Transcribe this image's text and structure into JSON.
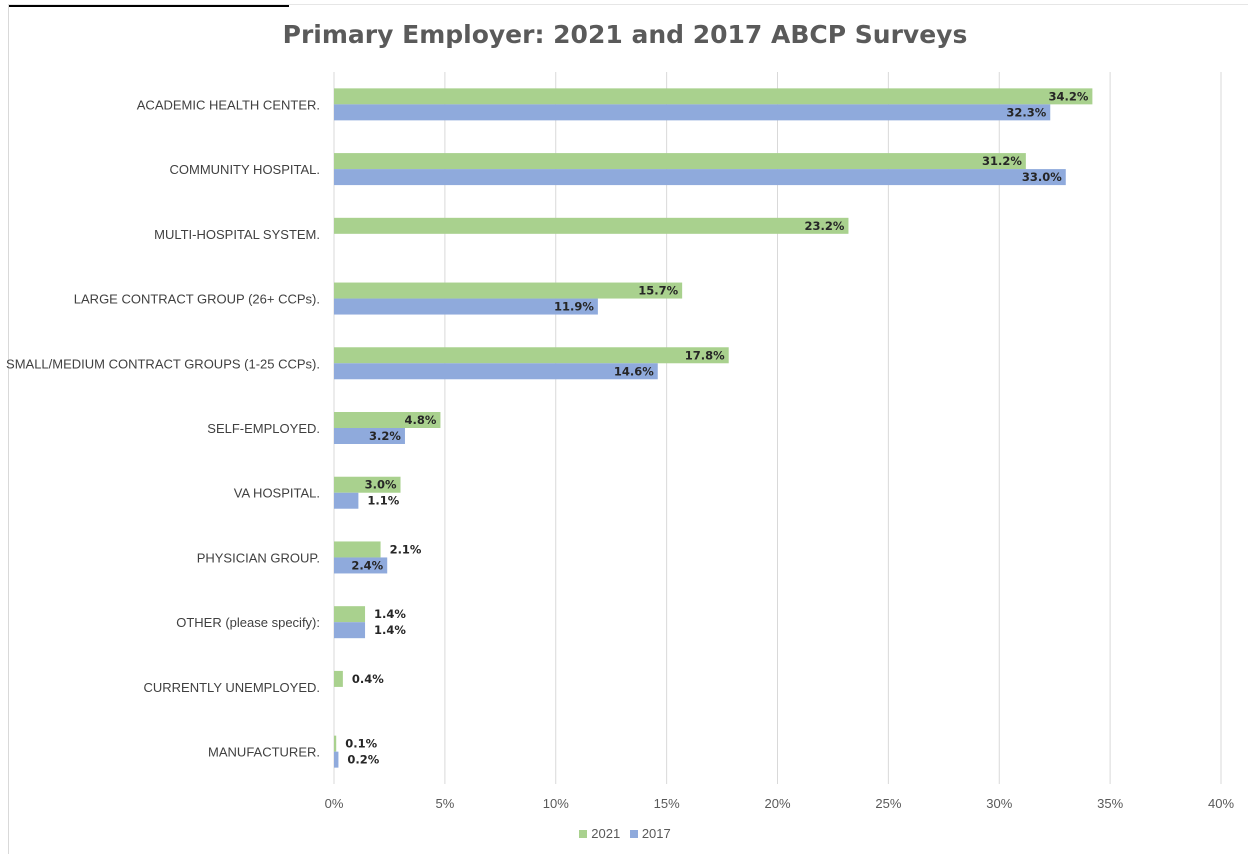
{
  "chart_data": {
    "type": "bar",
    "orientation": "horizontal",
    "title": "Primary Employer: 2021 and 2017 ABCP Surveys",
    "categories": [
      "ACADEMIC HEALTH CENTER.",
      "COMMUNITY HOSPITAL.",
      "MULTI-HOSPITAL SYSTEM.",
      "LARGE CONTRACT GROUP (26+ CCPs).",
      "SMALL/MEDIUM CONTRACT GROUPS (1-25 CCPs).",
      "SELF-EMPLOYED.",
      "VA HOSPITAL.",
      "PHYSICIAN GROUP.",
      "OTHER (please specify):",
      "CURRENTLY UNEMPLOYED.",
      "MANUFACTURER."
    ],
    "series": [
      {
        "name": "2021",
        "color": "#a9d18e",
        "values": [
          34.2,
          31.2,
          23.2,
          15.7,
          17.8,
          4.8,
          3.0,
          2.1,
          1.4,
          0.4,
          0.1
        ],
        "labels": [
          "34.2%",
          "31.2%",
          "23.2%",
          "15.7%",
          "17.8%",
          "4.8%",
          "3.0%",
          "2.1%",
          "1.4%",
          "0.4%",
          "0.1%"
        ]
      },
      {
        "name": "2017",
        "color": "#8faadc",
        "values": [
          32.3,
          33.0,
          null,
          11.9,
          14.6,
          3.2,
          1.1,
          2.4,
          1.4,
          null,
          0.2
        ],
        "labels": [
          "32.3%",
          "33.0%",
          null,
          "11.9%",
          "14.6%",
          "3.2%",
          "1.1%",
          "2.4%",
          "1.4%",
          null,
          "0.2%"
        ]
      }
    ],
    "xlim": [
      0,
      40
    ],
    "xticks": [
      0,
      5,
      10,
      15,
      20,
      25,
      30,
      35,
      40
    ],
    "xtick_labels": [
      "0%",
      "5%",
      "10%",
      "15%",
      "20%",
      "25%",
      "30%",
      "35%",
      "40%"
    ],
    "grid": true,
    "legend_position": "bottom"
  }
}
